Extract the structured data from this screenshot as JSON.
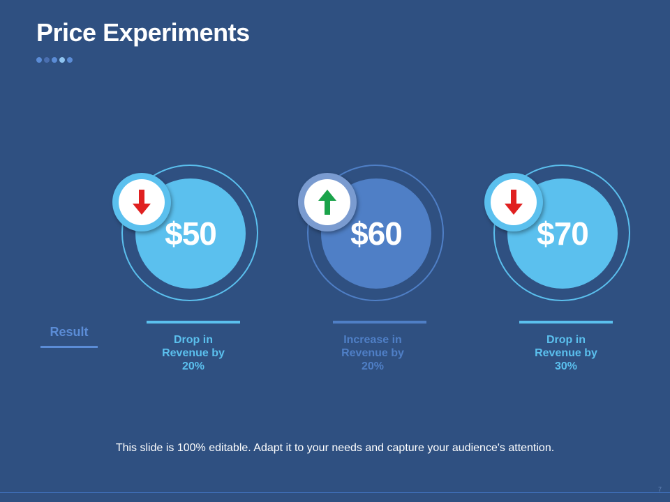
{
  "slide": {
    "title": "Price Experiments",
    "dot_colors": [
      "#5b8cd6",
      "#4a6fb0",
      "#5b8cd6",
      "#8fc4f0",
      "#5b8cd6"
    ],
    "result_label": "Result",
    "footer_text": "This slide is 100% editable. Adapt it to your needs and capture your audience's attention.",
    "page_number": "7"
  },
  "experiments": [
    {
      "price": "$50",
      "direction": "down",
      "icon": "arrow-down-icon",
      "result": "Drop in\nRevenue by\n20%",
      "disc_color": "#5bc0ee",
      "ring_color": "#5bc0ee",
      "badge_ring_color": "#5bc0ee",
      "arrow_color": "#e02020",
      "bar_color": "#5bc0ee",
      "text_color": "#5bc0ee"
    },
    {
      "price": "$60",
      "direction": "up",
      "icon": "arrow-up-icon",
      "result": "Increase in\nRevenue by\n20%",
      "disc_color": "#4f7fc6",
      "ring_color": "#4f7fc6",
      "badge_ring_color": "#7a9bd0",
      "arrow_color": "#1aa34a",
      "bar_color": "#4f7fc6",
      "text_color": "#4f7fc6"
    },
    {
      "price": "$70",
      "direction": "down",
      "icon": "arrow-down-icon",
      "result": "Drop in\nRevenue by\n30%",
      "disc_color": "#5bc0ee",
      "ring_color": "#5bc0ee",
      "badge_ring_color": "#5bc0ee",
      "arrow_color": "#e02020",
      "bar_color": "#5bc0ee",
      "text_color": "#5bc0ee"
    }
  ]
}
